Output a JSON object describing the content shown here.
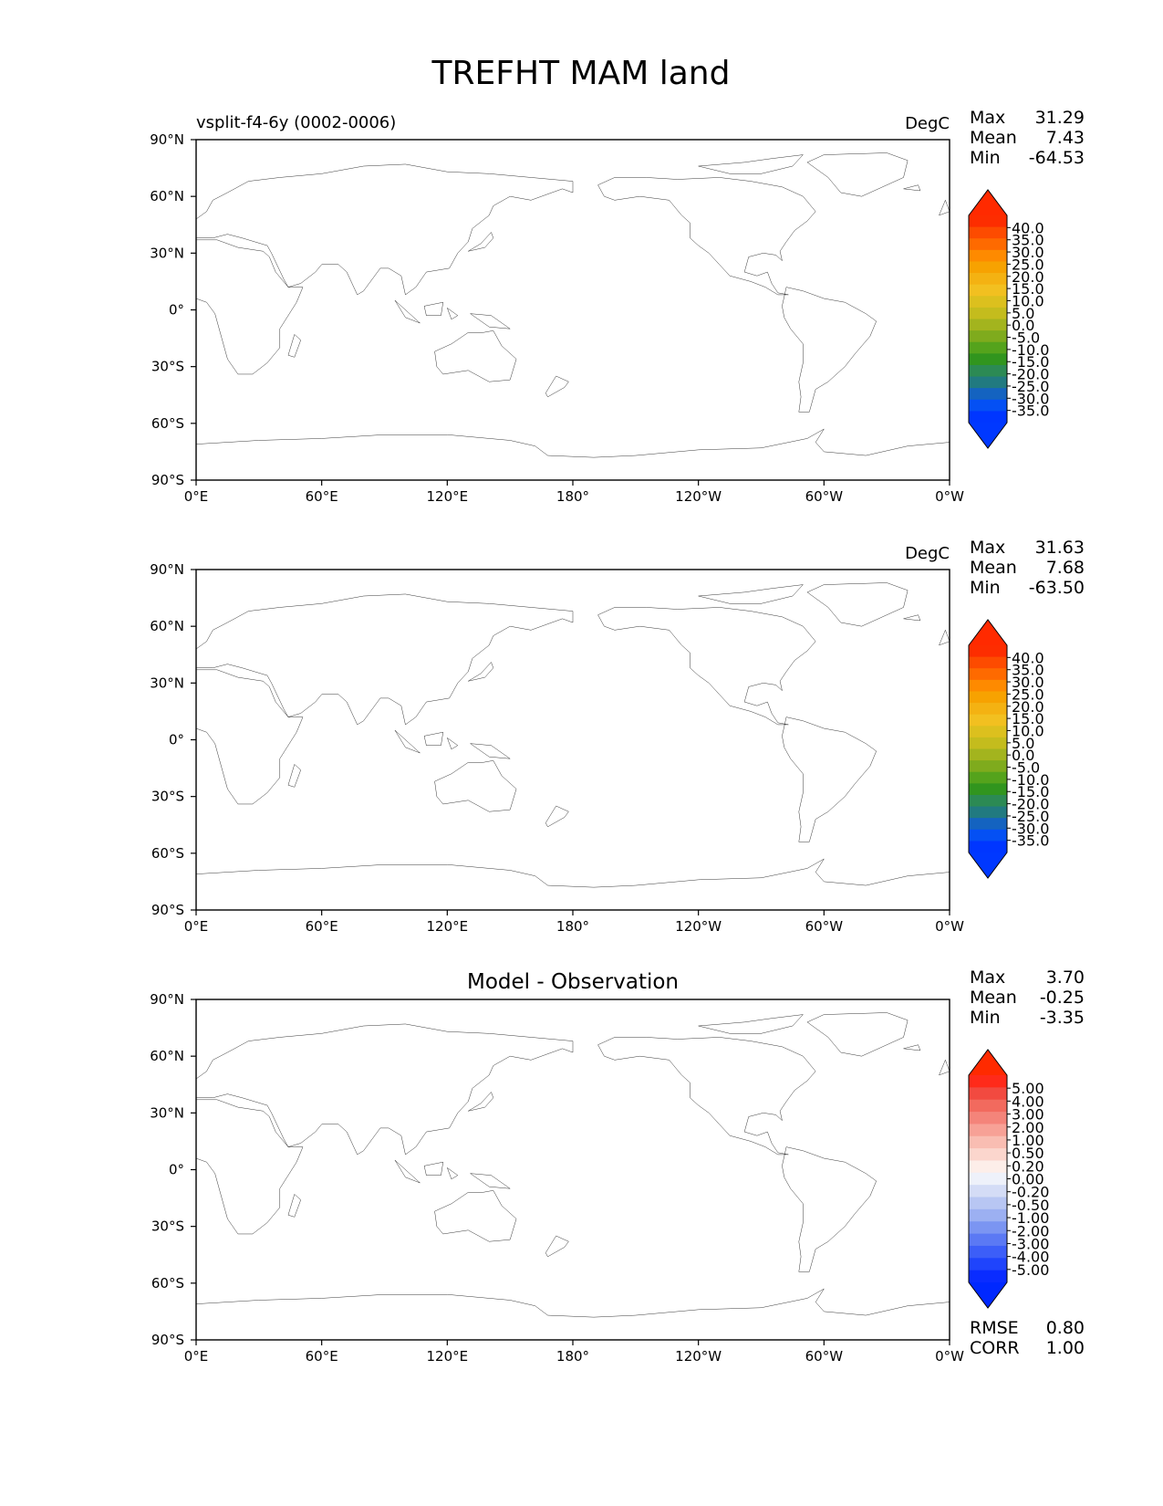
{
  "figure": {
    "title": "TREFHT MAM land",
    "lon_ticks": [
      "0°E",
      "60°E",
      "120°E",
      "180°",
      "120°W",
      "60°W",
      "0°W"
    ],
    "lat_ticks": [
      "90°N",
      "60°N",
      "30°N",
      "0°",
      "30°S",
      "60°S",
      "90°S"
    ]
  },
  "panels": [
    {
      "id": "test",
      "left_title": "vsplit-f4-6y (0002-0006)",
      "center_title": "",
      "units": "DegC",
      "stats": [
        {
          "label": "Max",
          "value": "31.29"
        },
        {
          "label": "Mean",
          "value": "7.43"
        },
        {
          "label": "Min",
          "value": "-64.53"
        }
      ],
      "colorbar": {
        "levels": [
          "40.0",
          "35.0",
          "30.0",
          "25.0",
          "20.0",
          "15.0",
          "10.0",
          "5.0",
          "0.0",
          "-5.0",
          "-10.0",
          "-15.0",
          "-20.0",
          "-25.0",
          "-30.0",
          "-35.0"
        ],
        "colors": [
          "#fd2d00",
          "#fd4b00",
          "#fe6a00",
          "#fe8a00",
          "#f7a201",
          "#f4b212",
          "#f2c020",
          "#dcc01e",
          "#c4bc1d",
          "#a3b41e",
          "#7fab1d",
          "#55a31c",
          "#31951e",
          "#2c8a54",
          "#217a80",
          "#1463c0",
          "#0450f4",
          "#0036ff"
        ],
        "top_color": "#ff2a00",
        "bottom_color": "#0038ff"
      },
      "extra_stats": []
    },
    {
      "id": "reference",
      "left_title": "",
      "center_title": "",
      "units": "DegC",
      "stats": [
        {
          "label": "Max",
          "value": "31.63"
        },
        {
          "label": "Mean",
          "value": "7.68"
        },
        {
          "label": "Min",
          "value": "-63.50"
        }
      ],
      "colorbar": {
        "levels": [
          "40.0",
          "35.0",
          "30.0",
          "25.0",
          "20.0",
          "15.0",
          "10.0",
          "5.0",
          "0.0",
          "-5.0",
          "-10.0",
          "-15.0",
          "-20.0",
          "-25.0",
          "-30.0",
          "-35.0"
        ],
        "colors": [
          "#fd2d00",
          "#fd4b00",
          "#fe6a00",
          "#fe8a00",
          "#f7a201",
          "#f4b212",
          "#f2c020",
          "#dcc01e",
          "#c4bc1d",
          "#a3b41e",
          "#7fab1d",
          "#55a31c",
          "#31951e",
          "#2c8a54",
          "#217a80",
          "#1463c0",
          "#0450f4",
          "#0036ff"
        ],
        "top_color": "#ff2a00",
        "bottom_color": "#0038ff"
      },
      "extra_stats": []
    },
    {
      "id": "diff",
      "left_title": "",
      "center_title": "Model - Observation",
      "units": "",
      "stats": [
        {
          "label": "Max",
          "value": "3.70"
        },
        {
          "label": "Mean",
          "value": "-0.25"
        },
        {
          "label": "Min",
          "value": "-3.35"
        }
      ],
      "colorbar": {
        "levels": [
          "5.00",
          "4.00",
          "3.00",
          "2.00",
          "1.00",
          "0.50",
          "0.20",
          "0.00",
          "-0.20",
          "-0.50",
          "-1.00",
          "-2.00",
          "-3.00",
          "-4.00",
          "-5.00"
        ],
        "colors": [
          "#ff2a1a",
          "#f24a40",
          "#f26a5e",
          "#f4847a",
          "#f7a196",
          "#f9bdb2",
          "#fbd6cd",
          "#fdeee9",
          "#eef1fa",
          "#d4dcf6",
          "#b8c6f3",
          "#9cb0f2",
          "#7b95f2",
          "#5b79f4",
          "#3c5ef8",
          "#1f44fc",
          "#0a2cff"
        ],
        "top_color": "#ff2a00",
        "bottom_color": "#0028ff"
      },
      "extra_stats": [
        {
          "label": "RMSE",
          "value": "0.80"
        },
        {
          "label": "CORR",
          "value": "1.00"
        }
      ]
    }
  ]
}
